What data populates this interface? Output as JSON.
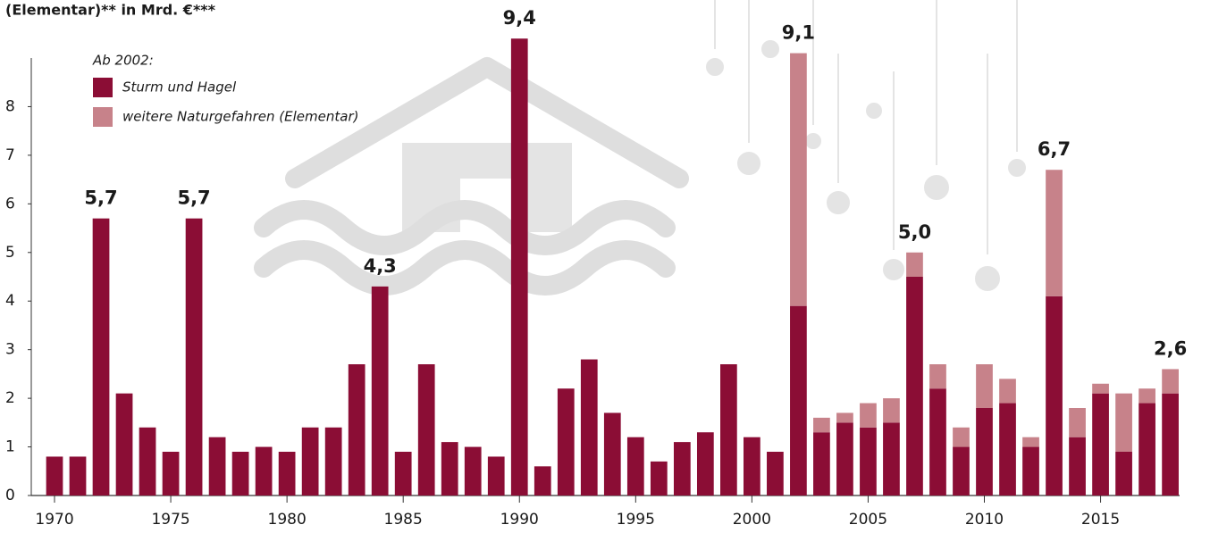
{
  "chart_data": {
    "type": "stacked-bar",
    "title": "(Elementar)** in Mrd. €***",
    "legend_title": "Ab 2002:",
    "x": [
      1970,
      1971,
      1972,
      1973,
      1974,
      1975,
      1976,
      1977,
      1978,
      1979,
      1980,
      1981,
      1982,
      1983,
      1984,
      1985,
      1986,
      1987,
      1988,
      1989,
      1990,
      1991,
      1992,
      1993,
      1994,
      1995,
      1996,
      1997,
      1998,
      1999,
      2000,
      2001,
      2002,
      2003,
      2004,
      2005,
      2006,
      2007,
      2008,
      2009,
      2010,
      2011,
      2012,
      2013,
      2014,
      2015,
      2016,
      2017,
      2018
    ],
    "series": [
      {
        "name": "Sturm und Hagel",
        "color": "#8b0d35",
        "values": [
          0.8,
          0.8,
          5.7,
          2.1,
          1.4,
          0.9,
          5.7,
          1.2,
          0.9,
          1.0,
          0.9,
          1.4,
          1.4,
          2.7,
          4.3,
          0.9,
          2.7,
          1.1,
          1.0,
          0.8,
          9.4,
          0.6,
          2.2,
          2.8,
          1.7,
          1.2,
          0.7,
          1.1,
          1.3,
          2.7,
          1.2,
          0.9,
          3.9,
          1.3,
          1.5,
          1.4,
          1.5,
          4.5,
          2.2,
          1.0,
          1.8,
          1.9,
          1.0,
          4.1,
          1.2,
          2.1,
          0.9,
          1.9,
          2.1
        ]
      },
      {
        "name": "weitere Naturgefahren (Elementar)",
        "color": "#c7828a",
        "values": [
          null,
          null,
          null,
          null,
          null,
          null,
          null,
          null,
          null,
          null,
          null,
          null,
          null,
          null,
          null,
          null,
          null,
          null,
          null,
          null,
          null,
          null,
          null,
          null,
          null,
          null,
          null,
          null,
          null,
          null,
          null,
          null,
          5.2,
          0.3,
          0.2,
          0.5,
          0.5,
          0.5,
          0.5,
          0.4,
          0.9,
          0.5,
          0.2,
          2.6,
          0.6,
          0.2,
          1.2,
          0.3,
          0.5
        ]
      }
    ],
    "annotations": [
      {
        "x": 1972,
        "value": 5.7,
        "label": "5,7"
      },
      {
        "x": 1976,
        "value": 5.7,
        "label": "5,7"
      },
      {
        "x": 1984,
        "value": 4.3,
        "label": "4,3"
      },
      {
        "x": 1990,
        "value": 9.4,
        "label": "9,4"
      },
      {
        "x": 2002,
        "value": 9.1,
        "label": "9,1"
      },
      {
        "x": 2007,
        "value": 5.0,
        "label": "5,0"
      },
      {
        "x": 2013,
        "value": 6.7,
        "label": "6,7"
      },
      {
        "x": 2018,
        "value": 2.6,
        "label": "2,6"
      }
    ],
    "xlim": [
      1969,
      2018.4
    ],
    "xticks": [
      1970,
      1975,
      1980,
      1985,
      1990,
      1995,
      2000,
      2005,
      2010,
      2015
    ],
    "ylim": [
      0,
      9
    ],
    "yticks": [
      0,
      1,
      2,
      3,
      4,
      5,
      6,
      7,
      8
    ],
    "grid": false
  }
}
